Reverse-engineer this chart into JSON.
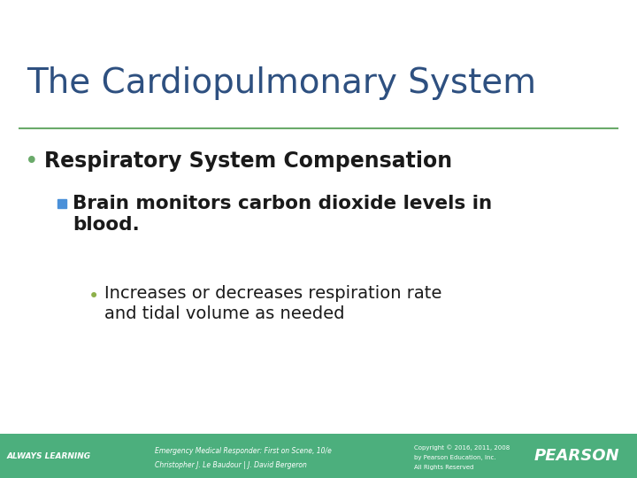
{
  "title": "The Cardiopulmonary System",
  "title_color": "#2E5080",
  "title_fontsize": 28,
  "bg_color": "#FFFFFF",
  "separator_color": "#6aaa6a",
  "bullet1_text": "Respiratory System Compensation",
  "bullet1_color": "#1a1a1a",
  "bullet1_fontsize": 17,
  "bullet1_bullet_color": "#6aaa6a",
  "bullet2_line1": "Brain monitors carbon dioxide levels in",
  "bullet2_line2": "blood.",
  "bullet2_color": "#1a1a1a",
  "bullet2_fontsize": 15.5,
  "bullet2_bullet_color": "#4A90D9",
  "bullet3_line1": "Increases or decreases respiration rate",
  "bullet3_line2": "and tidal volume as needed",
  "bullet3_color": "#1a1a1a",
  "bullet3_fontsize": 14,
  "bullet3_bullet_color": "#8DB04A",
  "footer_bg_color": "#4CAF7D",
  "footer_left1": "ALWAYS LEARNING",
  "footer_center1": "Emergency Medical Responder: First on Scene, 10/e",
  "footer_center2": "Christopher J. Le Baudour | J. David Bergeron",
  "footer_right1": "Copyright © 2016, 2011, 2008",
  "footer_right2": "by Pearson Education, Inc.",
  "footer_right3": "All Rights Reserved",
  "footer_pearson": "PEARSON",
  "footer_text_color": "#FFFFFF"
}
